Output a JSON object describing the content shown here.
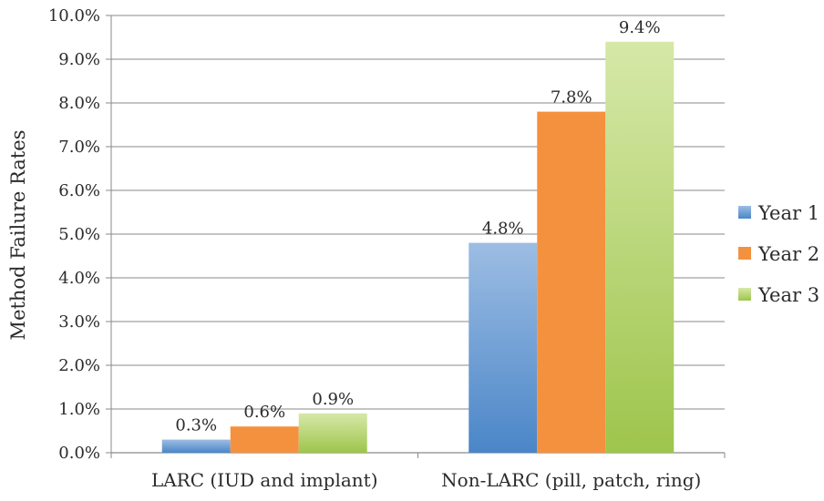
{
  "chart_data": {
    "type": "bar",
    "title": "",
    "xlabel": "",
    "ylabel": "Method Failure Rates",
    "categories": [
      "LARC (IUD and implant)",
      "Non-LARC (pill, patch, ring)"
    ],
    "series": [
      {
        "name": "Year 1",
        "values": [
          0.3,
          4.8
        ],
        "labels": [
          "0.3%",
          "4.8%"
        ],
        "color": "#4a86c8",
        "color_light": "#9dbde3"
      },
      {
        "name": "Year 2",
        "values": [
          0.6,
          7.8
        ],
        "labels": [
          "0.6%",
          "7.8%"
        ],
        "color": "#f4913f",
        "color_light": "#f4913f"
      },
      {
        "name": "Year 3",
        "values": [
          0.9,
          9.4
        ],
        "labels": [
          "0.9%",
          "9.4%"
        ],
        "color": "#9ec54c",
        "color_light": "#d6e8a8"
      }
    ],
    "ylim": [
      0,
      10
    ],
    "yticks": [
      0,
      1,
      2,
      3,
      4,
      5,
      6,
      7,
      8,
      9,
      10
    ],
    "ytick_labels": [
      "0.0%",
      "1.0%",
      "2.0%",
      "3.0%",
      "4.0%",
      "5.0%",
      "6.0%",
      "7.0%",
      "8.0%",
      "9.0%",
      "10.0%"
    ],
    "grid": true,
    "legend_position": "right"
  }
}
